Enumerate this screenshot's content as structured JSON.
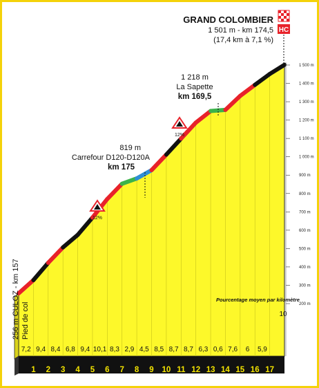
{
  "summit": {
    "name": "GRAND COLOMBIER",
    "line1": "1 501 m - km 174,5",
    "line2": "(17,4 km à 7,1 %)",
    "category": "HC"
  },
  "start": {
    "line1": "256 m CULOZ - km 157",
    "line2": "Pied de col"
  },
  "waypoints": [
    {
      "alt": "1 218 m",
      "name": "La Sapette",
      "km": "km 169,5"
    },
    {
      "alt": "819 m",
      "name": "Carrefour D120-D120A",
      "km": "km 175"
    }
  ],
  "hairpins": [
    {
      "label": "12%"
    },
    {
      "label": "12%"
    }
  ],
  "legend_note": "Pourcentage moyen par kilomètre",
  "colors": {
    "profile_fill": "#fdf82a",
    "base": "#111111",
    "pct_black": "#111111",
    "pct_red": "#e8222a",
    "pct_green": "#3bb34a",
    "pct_blue": "#2f8fd6",
    "frame": "#f4d20a"
  },
  "chart_data": {
    "type": "area",
    "x_unit": "km from foot of climb",
    "y_unit": "m",
    "ylim": [
      0,
      1500
    ],
    "y_ticks": [
      "200 m",
      "300 m",
      "400 m",
      "500 m",
      "600 m",
      "700 m",
      "800 m",
      "900 m",
      "1 000 m",
      "1 100 m",
      "1 200 m",
      "1 300 m",
      "1 400 m",
      "1 500 m"
    ],
    "y_tick_values": [
      200,
      300,
      400,
      500,
      600,
      700,
      800,
      900,
      1000,
      1100,
      1200,
      1300,
      1400,
      1500
    ],
    "x_ticks": [
      "1",
      "2",
      "3",
      "4",
      "5",
      "6",
      "7",
      "8",
      "9",
      "10",
      "11",
      "12",
      "13",
      "14",
      "15",
      "16",
      "17"
    ],
    "segment_gradients": [
      "7,2",
      "9,4",
      "8,4",
      "6,8",
      "9,4",
      "10,1",
      "8,3",
      "2,9",
      "4,5",
      "8,5",
      "8,7",
      "8,7",
      "6,3",
      "0,6",
      "7,6",
      "6",
      "5,9",
      "10"
    ],
    "segment_gradient_values": [
      7.2,
      9.4,
      8.4,
      6.8,
      9.4,
      10.1,
      8.3,
      2.9,
      4.5,
      8.5,
      8.7,
      8.7,
      6.3,
      0.6,
      7.6,
      6,
      5.9,
      10
    ],
    "segment_colors": [
      "red",
      "black",
      "red",
      "black",
      "black",
      "red",
      "red",
      "green",
      "blue",
      "red",
      "black",
      "red",
      "red",
      "green",
      "red",
      "red",
      "black",
      "black"
    ]
  }
}
